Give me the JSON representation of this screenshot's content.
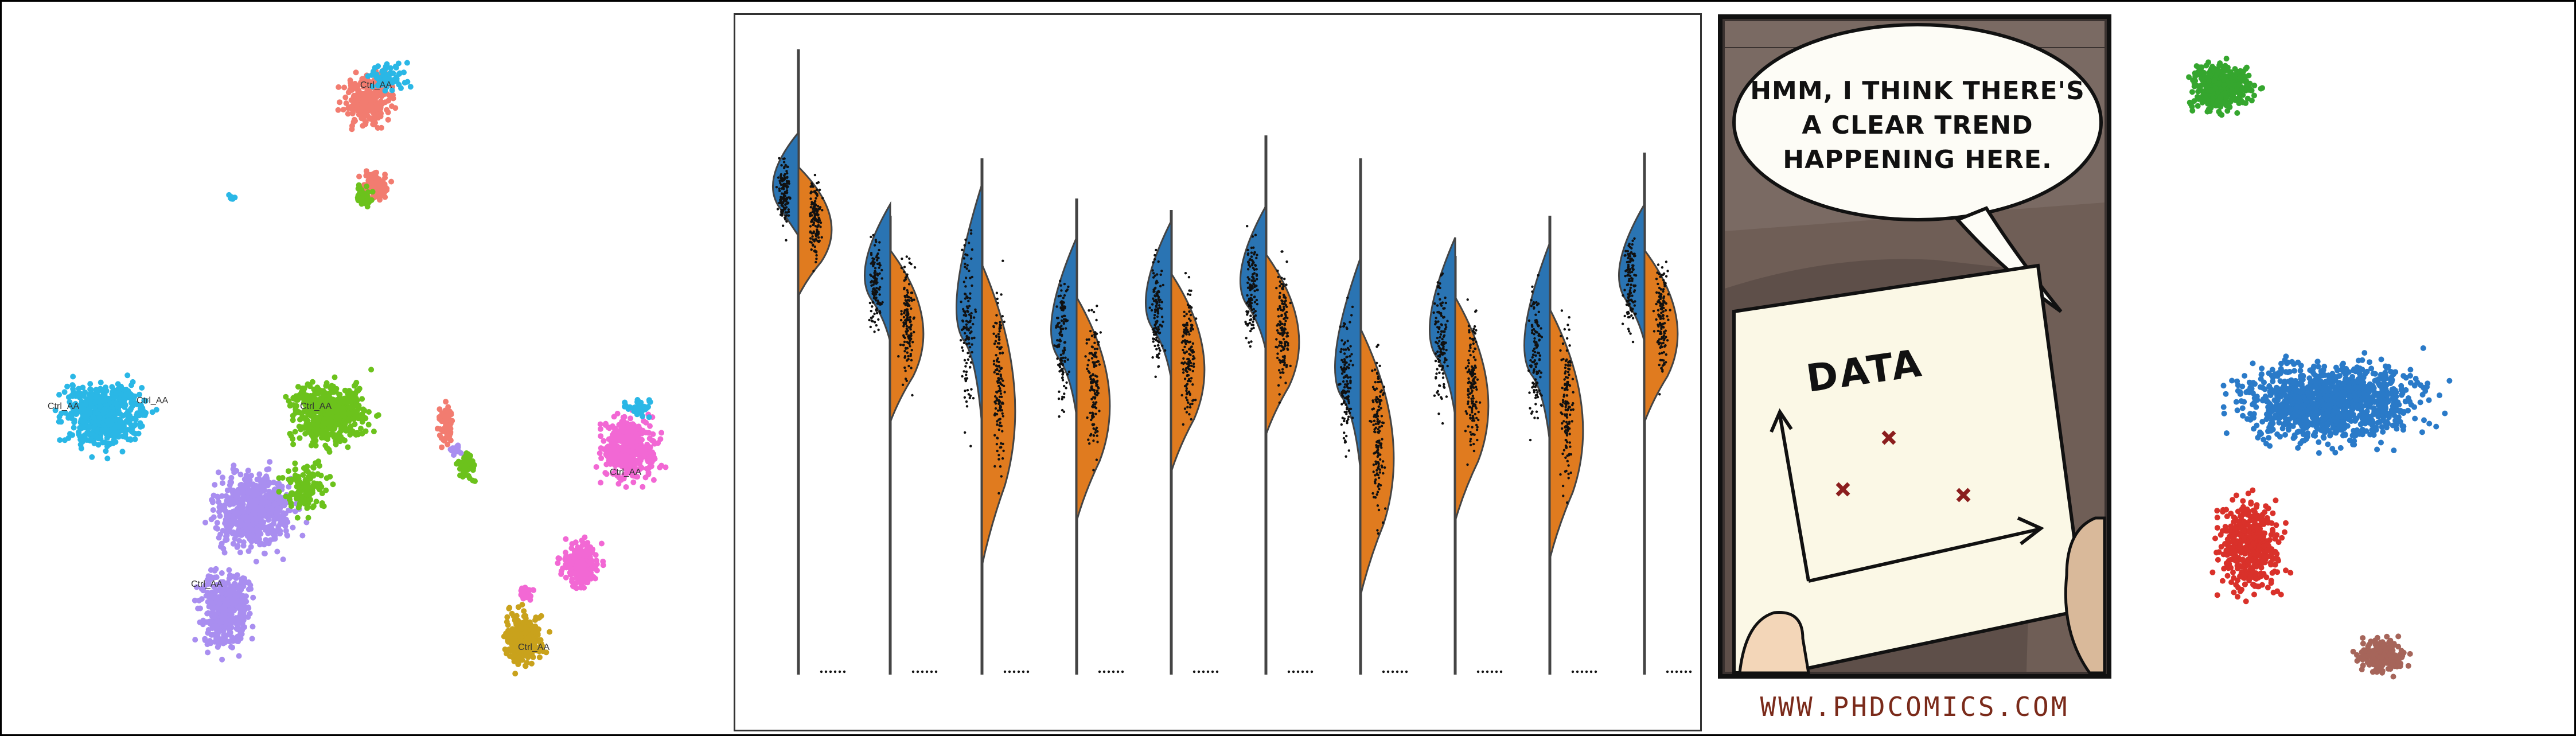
{
  "umap_panel": {
    "labels": [
      "Ctrl_AA",
      "Ctrl_AA",
      "Ctrl_AA",
      "Ctrl_AA",
      "Ctrl_AA",
      "Ctrl_AA",
      "Ctrl_AA"
    ],
    "colors": {
      "cyan": "#2ab7e6",
      "green": "#6cc21c",
      "lavender": "#a98ef0",
      "salmon": "#f27c70",
      "pink": "#f268d4",
      "olive": "#c9a21c"
    }
  },
  "violin_panel": {
    "colors": {
      "left": "#2a74b3",
      "right": "#e07b1f",
      "outline": "#444444"
    }
  },
  "comic_panel": {
    "speech_lines": [
      "HMM, I THINK THERE'S",
      "A CLEAR TREND",
      "HAPPENING HERE."
    ],
    "chart_word": "DATA",
    "credit": "WWW.PHDCOMICS.COM"
  },
  "clusters_panel": {
    "colors": {
      "green": "#35a62e",
      "blue": "#2a7ac8",
      "red": "#d9312a",
      "brown": "#a6655a"
    }
  }
}
